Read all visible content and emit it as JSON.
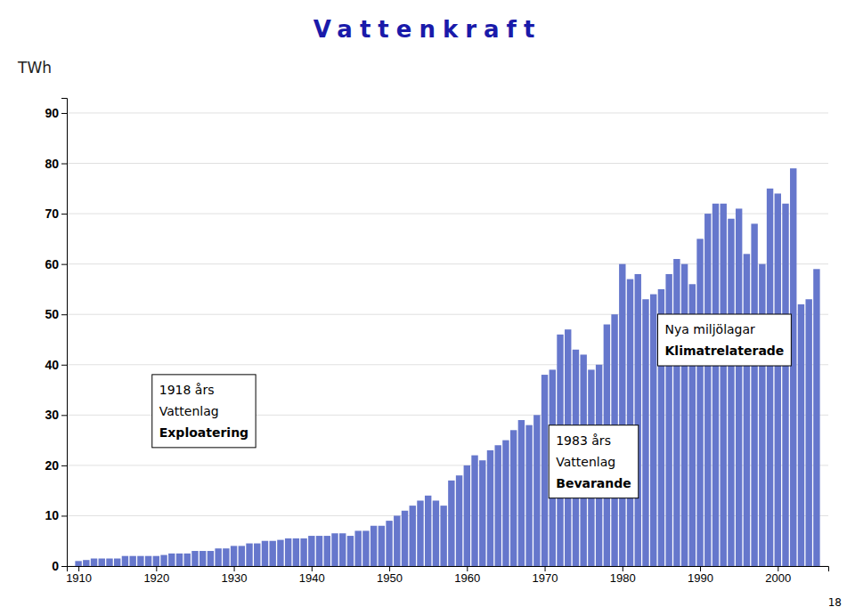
{
  "chart_data": {
    "type": "bar",
    "title": "Vattenkraft",
    "ylabel": "TWh",
    "color": "#6677CC",
    "x": [
      1910,
      1911,
      1912,
      1913,
      1914,
      1915,
      1916,
      1917,
      1918,
      1919,
      1920,
      1921,
      1922,
      1923,
      1924,
      1925,
      1926,
      1927,
      1928,
      1929,
      1930,
      1931,
      1932,
      1933,
      1934,
      1935,
      1936,
      1937,
      1938,
      1939,
      1940,
      1941,
      1942,
      1943,
      1944,
      1945,
      1946,
      1947,
      1948,
      1949,
      1950,
      1951,
      1952,
      1953,
      1954,
      1955,
      1956,
      1957,
      1958,
      1959,
      1960,
      1961,
      1962,
      1963,
      1964,
      1965,
      1966,
      1967,
      1968,
      1969,
      1970,
      1971,
      1972,
      1973,
      1974,
      1975,
      1976,
      1977,
      1978,
      1979,
      1980,
      1981,
      1982,
      1983,
      1984,
      1985,
      1986,
      1987,
      1988,
      1989,
      1990,
      1991,
      1992,
      1993,
      1994,
      1995,
      1996,
      1997,
      1998,
      1999,
      2000,
      2001,
      2002,
      2003,
      2004,
      2005
    ],
    "values": [
      1.0,
      1.2,
      1.5,
      1.5,
      1.5,
      1.5,
      2.0,
      2.0,
      2.0,
      2.0,
      2.0,
      2.2,
      2.5,
      2.5,
      2.5,
      3.0,
      3.0,
      3.0,
      3.5,
      3.5,
      4.0,
      4.0,
      4.5,
      4.5,
      5.0,
      5.0,
      5.2,
      5.5,
      5.5,
      5.5,
      6.0,
      6.0,
      6.0,
      6.5,
      6.5,
      6.0,
      7.0,
      7.0,
      8.0,
      8.0,
      9.0,
      10.0,
      11.0,
      12.0,
      13.0,
      14.0,
      13.0,
      12.0,
      17.0,
      18.0,
      20.0,
      22.0,
      21.0,
      23.0,
      24.0,
      25.0,
      27.0,
      29.0,
      28.0,
      30.0,
      38.0,
      39.0,
      46.0,
      47.0,
      43.0,
      42.0,
      39.0,
      40.0,
      48.0,
      50.0,
      60.0,
      57.0,
      58.0,
      53.0,
      54.0,
      55.0,
      58.0,
      61.0,
      60.0,
      56.0,
      65.0,
      70.0,
      72.0,
      72.0,
      69.0,
      71.0,
      62.0,
      68.0,
      60.0,
      75.0,
      74.0,
      72.0,
      79.0,
      52.0,
      53.0,
      59.0
    ],
    "xlim": [
      1908.5,
      2006.5
    ],
    "xticks": [
      1910,
      1920,
      1930,
      1940,
      1950,
      1960,
      1970,
      1980,
      1990,
      2000
    ],
    "ylim": [
      0,
      93
    ],
    "yticks": [
      0,
      10,
      20,
      30,
      40,
      50,
      60,
      70,
      80,
      90
    ],
    "grid": true,
    "annotations": [
      {
        "lines": [
          "1918 års",
          "Vattenlag"
        ],
        "bold": "Exploatering"
      },
      {
        "lines": [
          "1983 års",
          "Vattenlag"
        ],
        "bold": "Bevarande"
      },
      {
        "lines": [
          "Nya miljölagar"
        ],
        "bold": "Klimatrelaterade"
      }
    ],
    "page_number": "18"
  }
}
